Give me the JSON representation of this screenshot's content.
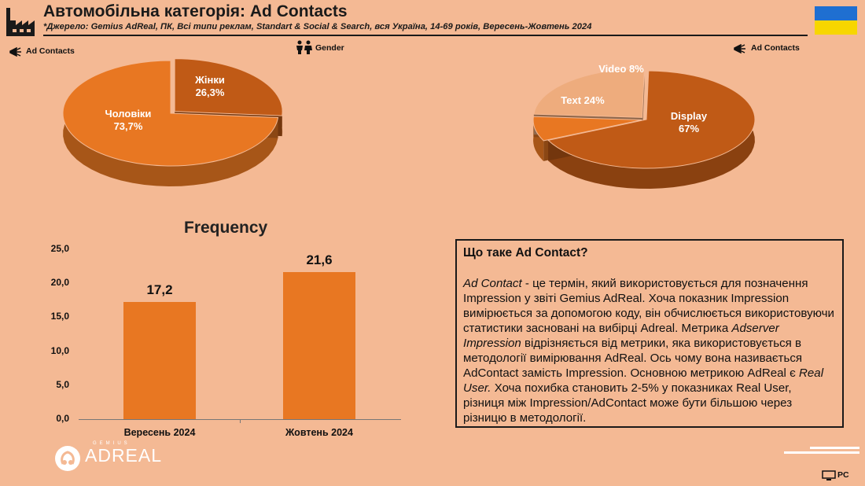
{
  "header": {
    "title": "Автомобільна категорія: Ad Contacts",
    "subtitle": "*Джерело: Gemius AdReal, ПК, Всі типи реклам, Standart & Social & Search, вся Україна, 14-69 років, Вересень-Жовтень 2024",
    "flag_colors": [
      "#1f6fd1",
      "#f7d600"
    ]
  },
  "gender_section": {
    "legend_label": "Ad Contacts",
    "gender_label": "Gender"
  },
  "format_section": {
    "legend_label": "Ad Contacts"
  },
  "frequency_section": {
    "title": "Frequency"
  },
  "info_box": {
    "heading": "Що таке Ad Contact?",
    "term_1": "Ad Contact",
    "text_1": " - це термін, який використовується для позначення Impression у звіті Gemius AdReal. Хоча показник Impression вимірюється за допомогою коду, він обчислюється використовуючи статистики засновані на вибірці Adreal. Метрика ",
    "term_2": "Adserver Impression",
    "text_2": " відрізняється від метрики, яка використовується в методології вимірювання AdReal. Ось чому вона називається AdContact замість Impression. Основною метрикою AdReal є ",
    "term_3": "Real User.",
    "text_3": " Хоча похибка становить 2-5% у показниках Real User, різниця між Impression/AdContact може бути більшою через різницю в методології."
  },
  "footer": {
    "logo_small": "GEMIUS",
    "logo_main": "ADREAL",
    "device_label": "PC"
  },
  "colors": {
    "background": "#f4b994",
    "orange": "#e87722",
    "dark_orange": "#c05a16",
    "light_orange": "#eeac7d"
  },
  "chart_data": [
    {
      "type": "pie",
      "categories": [
        "Чоловіки",
        "Жінки"
      ],
      "values": [
        73.7,
        26.3
      ],
      "labels": [
        "Чоловіки\n73,7%",
        "Жінки\n26,3%"
      ],
      "colors": [
        "#e87722",
        "#c05a16"
      ],
      "exploded": "Жінки"
    },
    {
      "type": "pie",
      "categories": [
        "Display",
        "Text",
        "Video"
      ],
      "values": [
        67,
        24,
        8
      ],
      "labels": [
        "Display\n67%",
        "Text 24%",
        "Video 8%"
      ],
      "colors": [
        "#c05a16",
        "#eeac7d",
        "#e87722"
      ],
      "exploded": "Text, Video"
    },
    {
      "type": "bar",
      "title": "Frequency",
      "categories": [
        "Вересень 2024",
        "Жовтень 2024"
      ],
      "values": [
        17.2,
        21.6
      ],
      "value_labels": [
        "17,2",
        "21,6"
      ],
      "ylim": [
        0,
        25
      ],
      "yticks": [
        "0,0",
        "5,0",
        "10,0",
        "15,0",
        "20,0",
        "25,0"
      ],
      "color": "#e87722",
      "grid": false
    }
  ]
}
